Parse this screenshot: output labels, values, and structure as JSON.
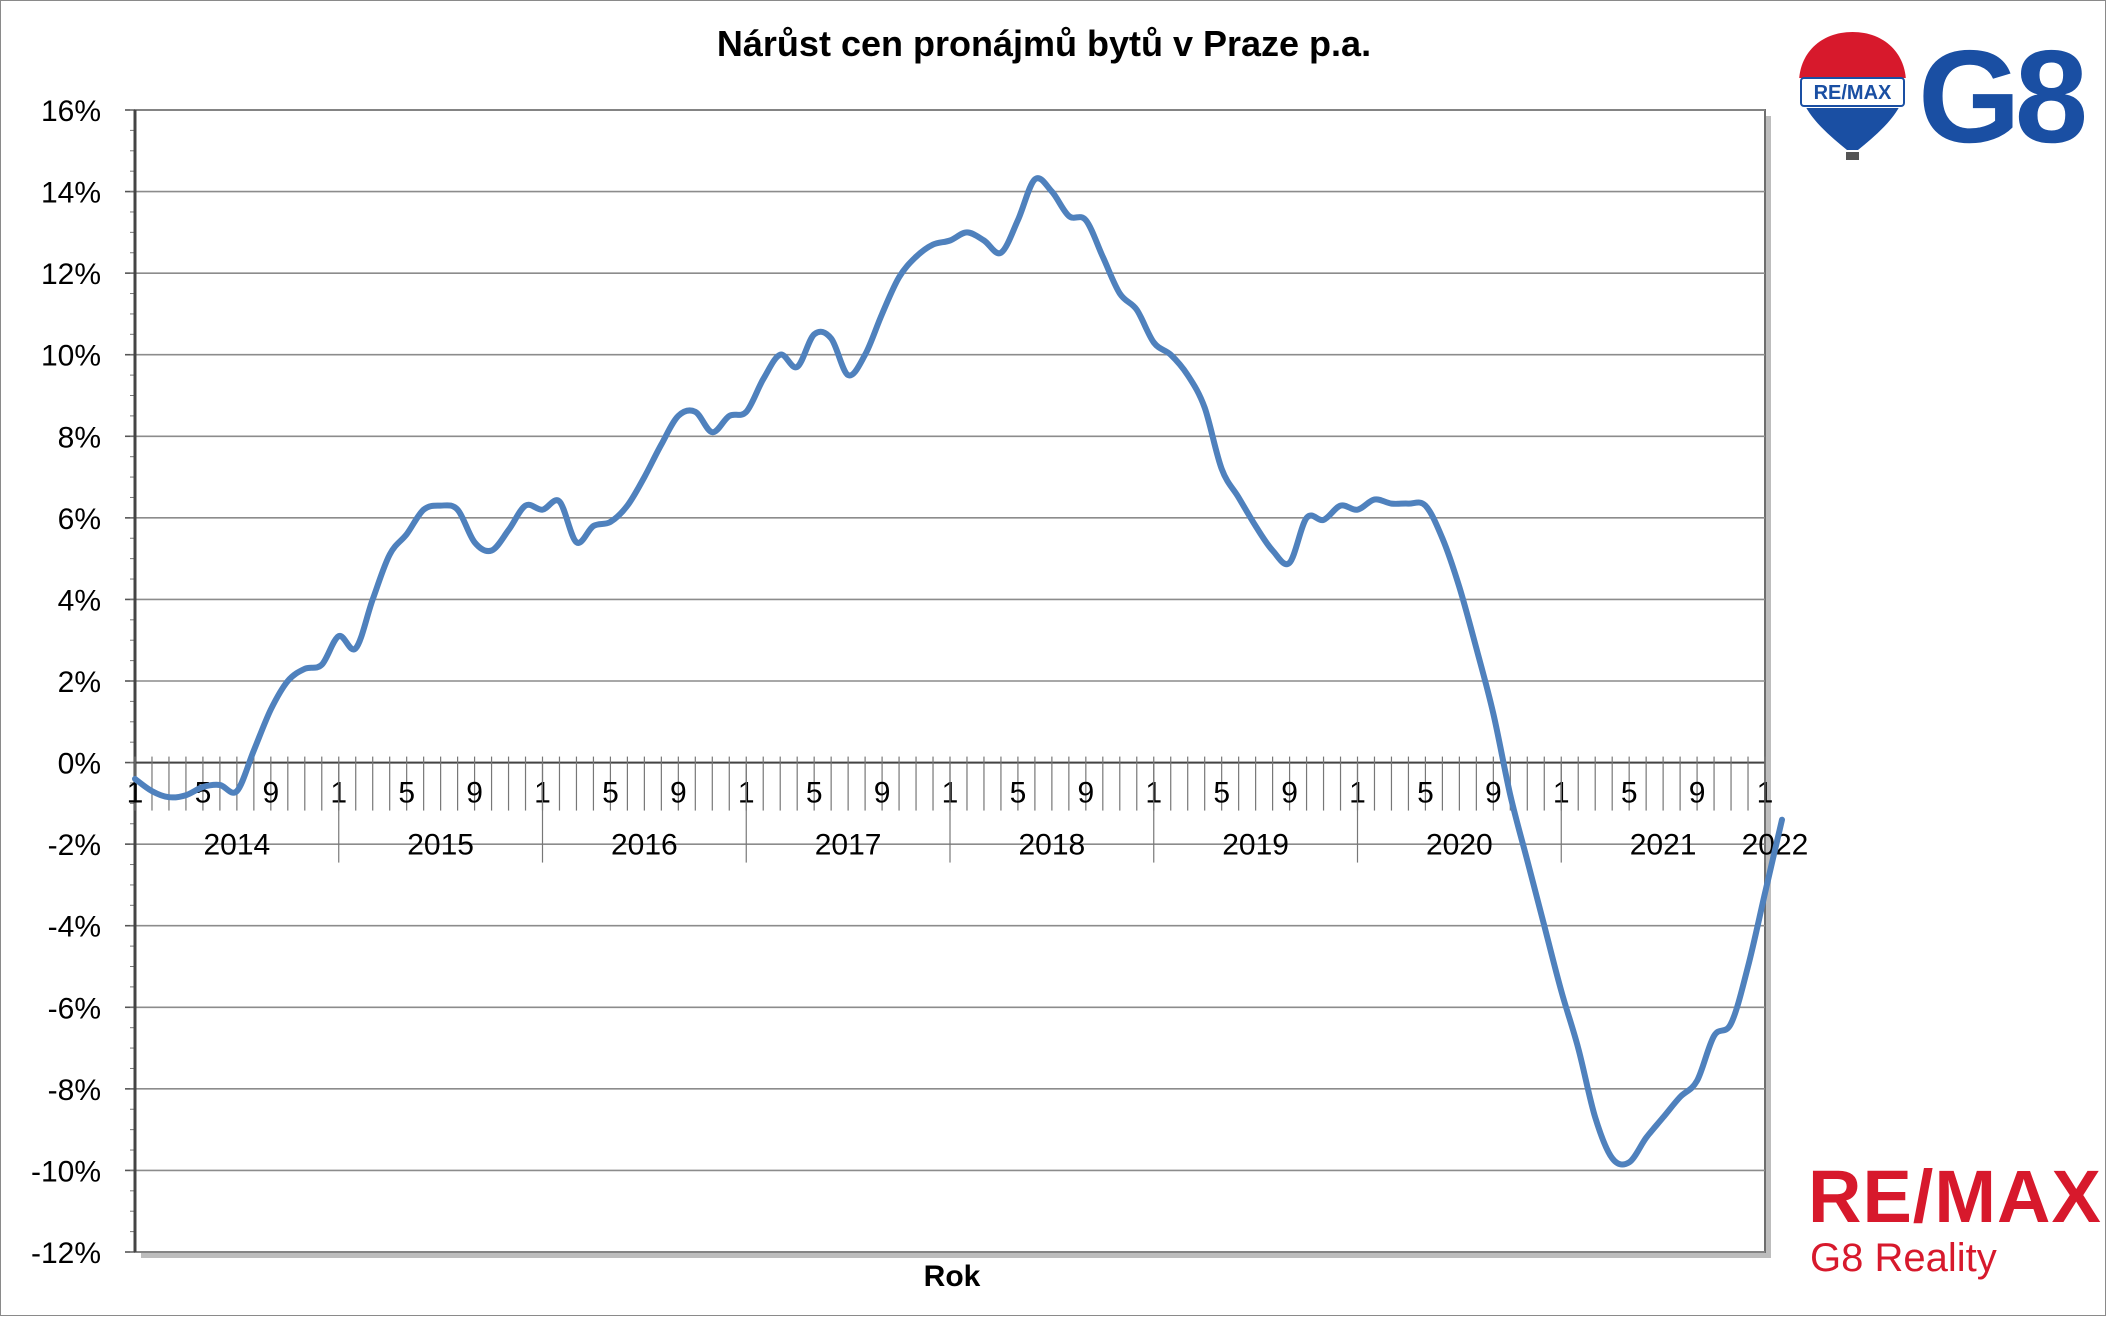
{
  "chart_data": {
    "type": "line",
    "title": "Nárůst cen pronájmů bytů v Praze p.a.",
    "xlabel": "Rok",
    "ylabel": "",
    "ylim": [
      -12,
      16
    ],
    "y_ticks": [
      "16%",
      "14%",
      "12%",
      "10%",
      "8%",
      "6%",
      "4%",
      "2%",
      "0%",
      "-2%",
      "-4%",
      "-6%",
      "-8%",
      "-10%",
      "-12%"
    ],
    "x_month_labels": [
      "1",
      "5",
      "9"
    ],
    "years": [
      "2014",
      "2015",
      "2016",
      "2017",
      "2018",
      "2019",
      "2020",
      "2021",
      "2022"
    ],
    "grid": true,
    "legend": "none",
    "x_start": "2014-01",
    "series": [
      {
        "color": "#4f81bd",
        "values": [
          -0.4,
          -0.7,
          -0.85,
          -0.8,
          -0.6,
          -0.55,
          -0.7,
          0.3,
          1.3,
          2.0,
          2.3,
          2.4,
          3.1,
          2.8,
          4.0,
          5.1,
          5.6,
          6.2,
          6.3,
          6.2,
          5.4,
          5.2,
          5.7,
          6.3,
          6.2,
          6.4,
          5.4,
          5.8,
          5.9,
          6.3,
          7.0,
          7.8,
          8.5,
          8.6,
          8.1,
          8.5,
          8.6,
          9.4,
          10.0,
          9.7,
          10.5,
          10.4,
          9.5,
          10.0,
          11.0,
          11.9,
          12.4,
          12.7,
          12.8,
          13.0,
          12.8,
          12.5,
          13.3,
          14.3,
          14.0,
          13.4,
          13.3,
          12.4,
          11.5,
          11.1,
          10.3,
          10.0,
          9.5,
          8.7,
          7.2,
          6.5,
          5.8,
          5.2,
          4.9,
          6.0,
          5.95,
          6.3,
          6.2,
          6.45,
          6.35,
          6.35,
          6.3,
          5.5,
          4.3,
          2.8,
          1.2,
          -0.8,
          -2.4,
          -4.0,
          -5.6,
          -7.0,
          -8.7,
          -9.7,
          -9.8,
          -9.2,
          -8.7,
          -8.2,
          -7.8,
          -6.7,
          -6.4,
          -5.0,
          -3.2,
          -1.4
        ]
      }
    ]
  },
  "logos": {
    "balloon_text": "RE/MAX",
    "g8": "G8",
    "remax_text": "RE/MAX",
    "g8_reality": "G8 Reality"
  },
  "colors": {
    "line": "#4f81bd",
    "grid": "#8c8c8c",
    "remax_red": "#d7192c",
    "remax_blue": "#1a4fa3"
  }
}
